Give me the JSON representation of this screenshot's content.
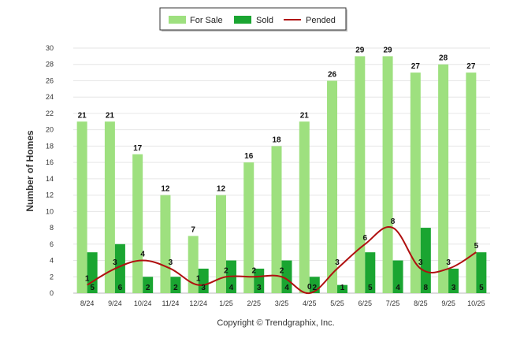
{
  "chart_data": {
    "type": "bar",
    "title": "",
    "xlabel": "",
    "ylabel": "Number of Homes",
    "ylim": [
      0,
      30
    ],
    "y_ticks": [
      0,
      2,
      4,
      6,
      8,
      10,
      12,
      14,
      16,
      18,
      20,
      22,
      24,
      26,
      28,
      30
    ],
    "grid": true,
    "legend_position": "top-center",
    "categories": [
      "8/24",
      "9/24",
      "10/24",
      "11/24",
      "12/24",
      "1/25",
      "2/25",
      "3/25",
      "4/25",
      "5/25",
      "6/25",
      "7/25",
      "8/25",
      "9/25",
      "10/25"
    ],
    "series": [
      {
        "name": "For Sale",
        "type": "bar",
        "color": "#9ee07f",
        "values": [
          21,
          21,
          17,
          12,
          7,
          12,
          16,
          18,
          21,
          26,
          29,
          29,
          27,
          28,
          27
        ]
      },
      {
        "name": "Sold",
        "type": "bar",
        "color": "#1aa531",
        "values": [
          5,
          6,
          2,
          2,
          3,
          4,
          3,
          4,
          2,
          1,
          5,
          4,
          8,
          3,
          5
        ]
      },
      {
        "name": "Pended",
        "type": "line",
        "color": "#b01010",
        "values": [
          1,
          3,
          4,
          3,
          1,
          2,
          2,
          2,
          0,
          3,
          6,
          8,
          3,
          3,
          5
        ]
      }
    ]
  },
  "copyright": "Copyright © Trendgraphix, Inc."
}
